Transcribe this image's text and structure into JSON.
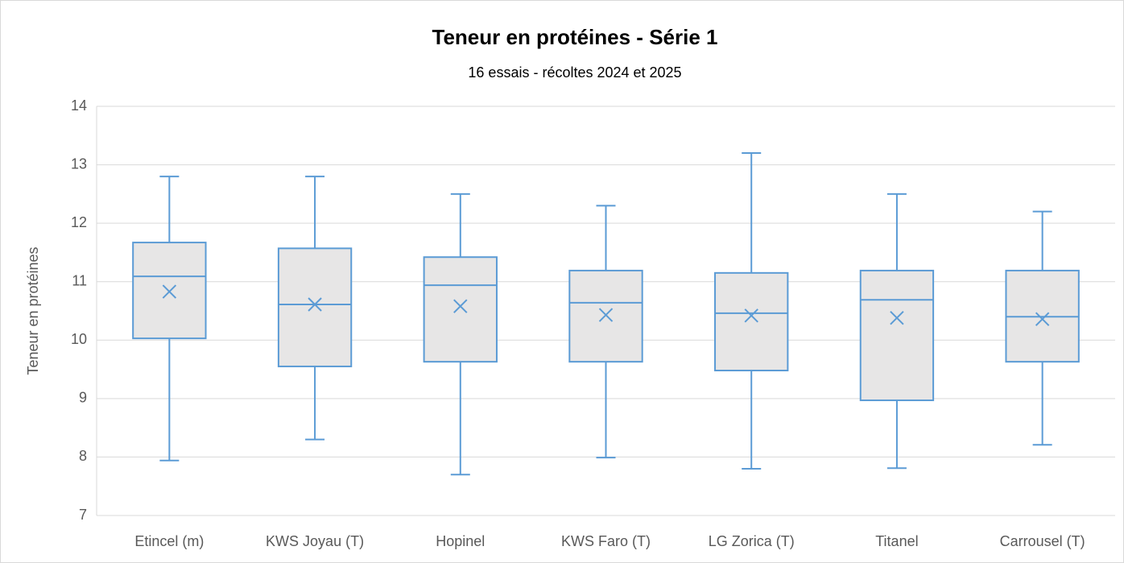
{
  "chart_data": {
    "type": "box",
    "title": "Teneur en protéines - Série 1",
    "subtitle": "16 essais - récoltes 2024 et 2025",
    "y_label": "Teneur en protéines",
    "categories": [
      "Etincel (m)",
      "KWS Joyau (T)",
      "Hopinel",
      "KWS Faro (T)",
      "LG Zorica (T)",
      "Titanel",
      "Carrousel (T)"
    ],
    "min": [
      7.94,
      8.3,
      7.7,
      7.99,
      7.8,
      7.81,
      8.21
    ],
    "q1": [
      10.03,
      9.55,
      9.63,
      9.63,
      9.48,
      8.97,
      9.63
    ],
    "median": [
      11.09,
      10.61,
      10.94,
      10.64,
      10.46,
      10.69,
      10.4
    ],
    "q3": [
      11.67,
      11.57,
      11.42,
      11.19,
      11.15,
      11.19,
      11.19
    ],
    "max": [
      12.8,
      12.8,
      12.5,
      12.3,
      13.2,
      12.5,
      12.2
    ],
    "mean": [
      10.83,
      10.61,
      10.58,
      10.43,
      10.42,
      10.38,
      10.36
    ],
    "color": "#5b9bd5",
    "box_fill": "#e7e6e6",
    "ylim": [
      7,
      14
    ],
    "yticks": [
      7,
      8,
      9,
      10,
      11,
      12,
      13,
      14
    ],
    "grid": true
  }
}
